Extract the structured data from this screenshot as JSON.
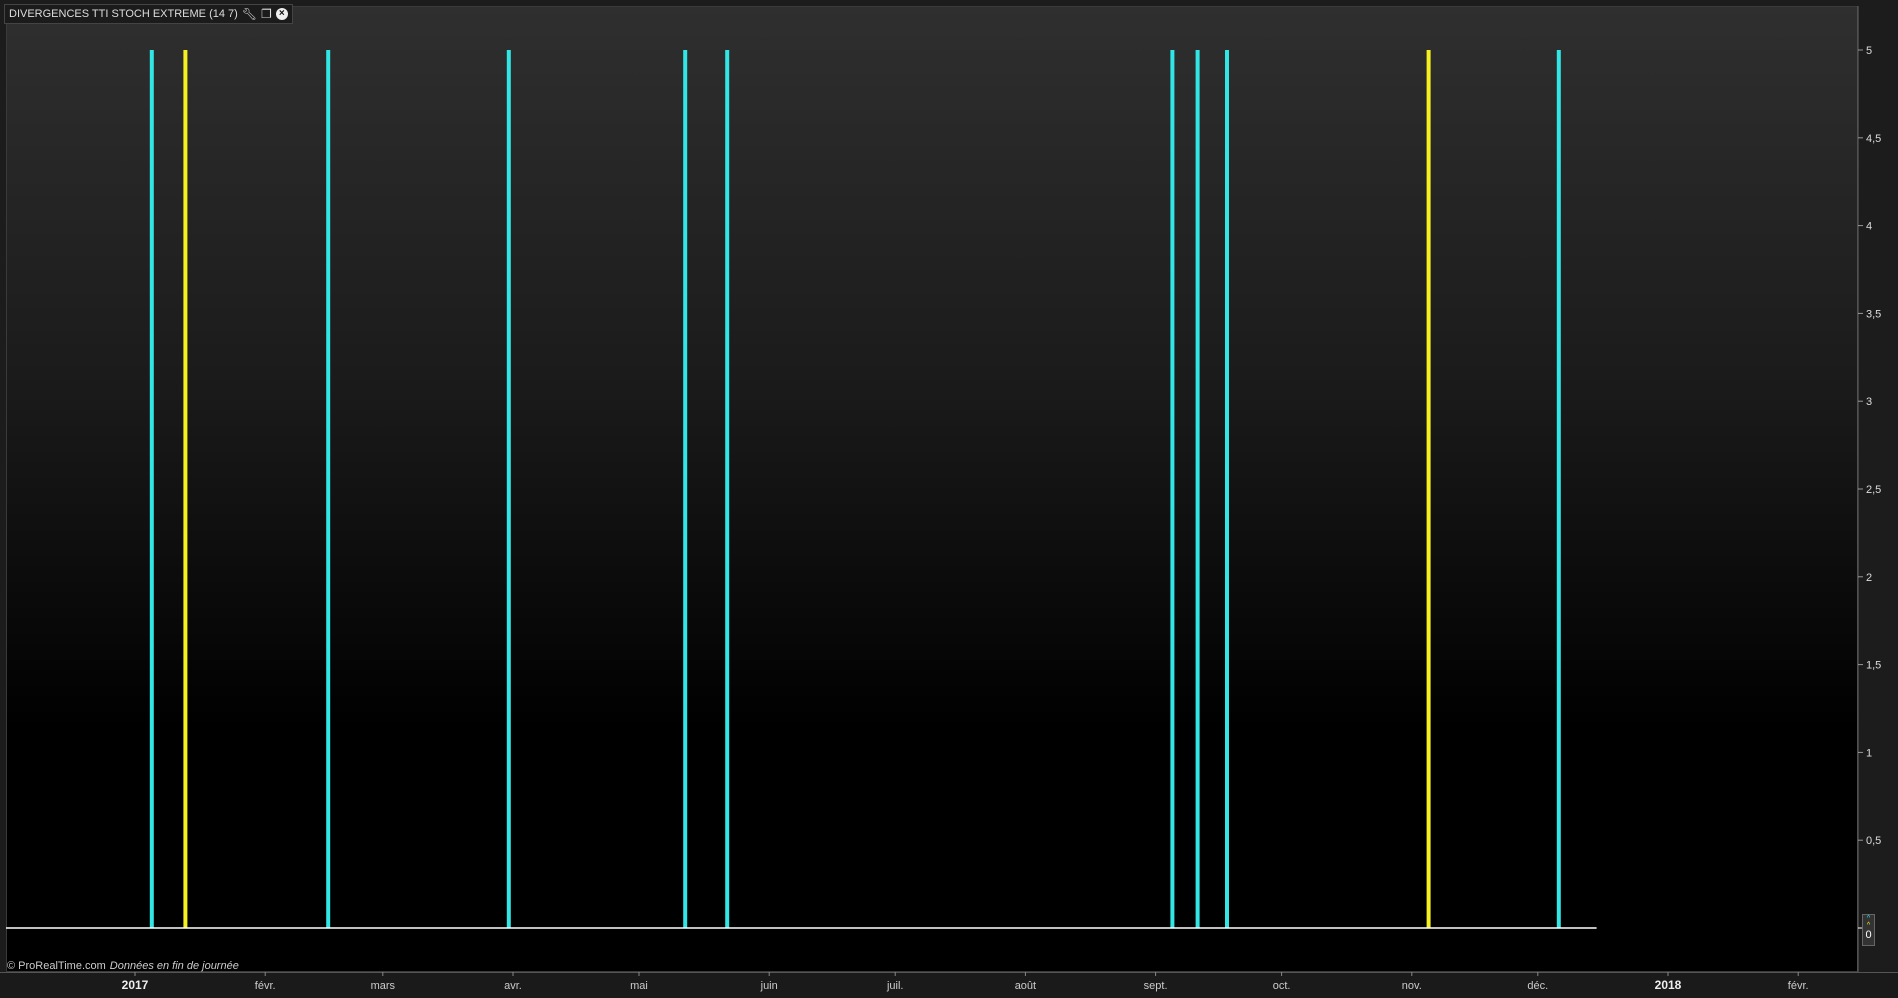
{
  "window": {
    "title": "DIVERGENCES TTI STOCH EXTREME (14 7)",
    "icons": [
      "wrench-icon",
      "restore-window-icon",
      "close-icon"
    ]
  },
  "footer": {
    "copyright": "© ProRealTime.com",
    "note": "Données en fin de journée"
  },
  "colors": {
    "bullish": "#33e6e6",
    "bearish": "#f5f020",
    "zero_line": "#ffffff"
  },
  "zero_badge": {
    "value": "0"
  },
  "chart_data": {
    "type": "bar",
    "title": "DIVERGENCES TTI STOCH EXTREME (14 7)",
    "xlabel": "",
    "ylabel": "",
    "ylim": [
      0,
      5
    ],
    "yticks": [
      "0",
      "0,5",
      "1",
      "1,5",
      "2",
      "2,5",
      "3",
      "3,5",
      "4",
      "4,5",
      "5"
    ],
    "xticks": [
      {
        "label": "2017",
        "date": "2017-01-01",
        "bold": true
      },
      {
        "label": "févr.",
        "date": "2017-02-01"
      },
      {
        "label": "mars",
        "date": "2017-03-01"
      },
      {
        "label": "avr.",
        "date": "2017-04-01"
      },
      {
        "label": "mai",
        "date": "2017-05-01"
      },
      {
        "label": "juin",
        "date": "2017-06-01"
      },
      {
        "label": "juil.",
        "date": "2017-07-01"
      },
      {
        "label": "août",
        "date": "2017-08-01"
      },
      {
        "label": "sept.",
        "date": "2017-09-01"
      },
      {
        "label": "oct.",
        "date": "2017-10-01"
      },
      {
        "label": "nov.",
        "date": "2017-11-01"
      },
      {
        "label": "déc.",
        "date": "2017-12-01"
      },
      {
        "label": "2018",
        "date": "2018-01-01",
        "bold": true
      },
      {
        "label": "févr.",
        "date": "2018-02-01"
      }
    ],
    "data_end": "2017-12-15",
    "grid": false,
    "series": [
      {
        "color": "#33e6e6",
        "points": [
          {
            "date": "2017-01-05",
            "value": 5
          },
          {
            "date": "2017-02-16",
            "value": 5
          },
          {
            "date": "2017-03-31",
            "value": 5
          },
          {
            "date": "2017-05-12",
            "value": 5
          },
          {
            "date": "2017-05-22",
            "value": 5
          },
          {
            "date": "2017-09-05",
            "value": 5
          },
          {
            "date": "2017-09-11",
            "value": 5
          },
          {
            "date": "2017-09-18",
            "value": 5
          },
          {
            "date": "2017-12-06",
            "value": 5
          }
        ]
      },
      {
        "color": "#f5f020",
        "points": [
          {
            "date": "2017-01-13",
            "value": 5
          },
          {
            "date": "2017-11-05",
            "value": 5
          }
        ]
      }
    ]
  }
}
